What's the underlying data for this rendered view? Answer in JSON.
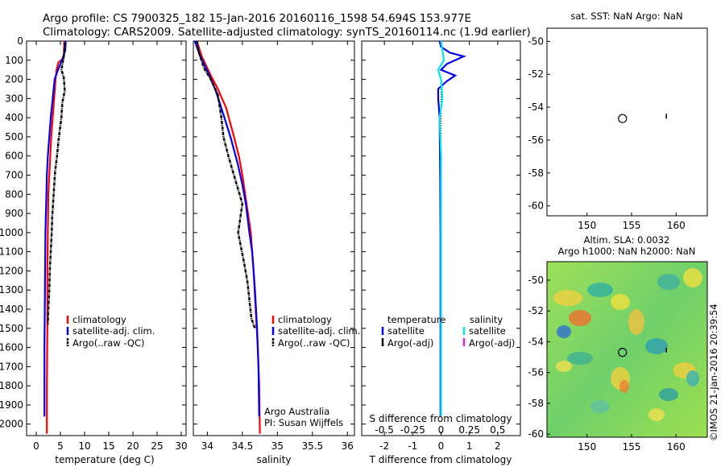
{
  "header": {
    "line1": "Argo profile: CS 7900325_182 15-Jan-2016 20160116_1598 54.694S 153.977E",
    "line2": "Climatology: CARS2009. Satellite-adjusted climatology: synTS_20160114.nc (1.9d earlier)"
  },
  "colors": {
    "climatology": "#ff0000",
    "satellite": "#0000ee",
    "argo": "#000000",
    "sat_salinity": "#00e5ee",
    "argo_salinity": "#e020e0"
  },
  "chart_data": [
    {
      "type": "line",
      "id": "temperature",
      "xlabel": "temperature (deg C)",
      "ylabel": "",
      "xlim": [
        -2,
        31
      ],
      "ylim": [
        0,
        2060
      ],
      "xticks": [
        0,
        5,
        10,
        15,
        20,
        25,
        30
      ],
      "yticks": [
        0,
        100,
        200,
        300,
        400,
        500,
        600,
        700,
        800,
        900,
        1000,
        1100,
        1200,
        1300,
        1400,
        1500,
        1600,
        1700,
        1800,
        1900,
        2000
      ],
      "y_reversed": true,
      "legend": {
        "placement": "lower-middle",
        "entries": [
          "climatology",
          "satellite-adj. clim.",
          "Argo(..raw -QC)"
        ]
      },
      "series": [
        {
          "name": "climatology",
          "color": "#ff0000",
          "x": [
            5.8,
            5.7,
            4.6,
            4.2,
            4.0,
            3.7,
            3.4,
            3.1,
            2.9,
            2.7,
            2.5,
            2.4,
            2.3,
            2.3,
            2.2,
            2.2
          ],
          "y": [
            0,
            90,
            110,
            150,
            200,
            300,
            400,
            500,
            600,
            700,
            800,
            1000,
            1200,
            1500,
            1800,
            2050
          ]
        },
        {
          "name": "satellite-adj. clim.",
          "color": "#0000ee",
          "x": [
            6.1,
            6.0,
            5.3,
            4.5,
            3.8,
            3.4,
            3.0,
            2.7,
            2.4,
            2.2,
            2.1,
            1.9,
            1.8,
            1.7,
            1.7
          ],
          "y": [
            0,
            50,
            100,
            150,
            200,
            300,
            400,
            500,
            600,
            700,
            800,
            1000,
            1300,
            1600,
            1960
          ]
        },
        {
          "name": "Argo(..raw -QC)",
          "color": "#000000",
          "x": [
            5.9,
            5.8,
            5.5,
            5.2,
            5.7,
            5.9,
            5.4,
            5.2,
            4.9,
            4.6,
            4.3,
            3.9,
            3.7,
            3.5,
            3.3,
            3.2,
            3.0,
            2.8,
            2.7,
            2.5,
            2.4
          ],
          "y": [
            10,
            60,
            110,
            150,
            190,
            260,
            320,
            400,
            460,
            520,
            600,
            680,
            760,
            840,
            920,
            1000,
            1100,
            1200,
            1300,
            1400,
            1480
          ]
        }
      ]
    },
    {
      "type": "line",
      "id": "salinity",
      "xlabel": "salinity",
      "ylabel": "",
      "xlim": [
        33.8,
        36.1
      ],
      "ylim": [
        0,
        2060
      ],
      "xticks": [
        34,
        34.5,
        35,
        35.5,
        36
      ],
      "y_reversed": true,
      "legend": {
        "placement": "lower-right",
        "entries": [
          "climatology",
          "satellite-adj. clim.",
          "Argo(..raw -QC)"
        ]
      },
      "annotations": [
        "Argo Australia",
        "PI: Susan Wijffels"
      ],
      "series": [
        {
          "name": "climatology",
          "color": "#ff0000",
          "x": [
            33.85,
            33.92,
            34.05,
            34.15,
            34.27,
            34.38,
            34.45,
            34.5,
            34.54,
            34.58,
            34.62,
            34.66,
            34.69,
            34.72,
            34.74,
            34.75
          ],
          "y": [
            0,
            80,
            180,
            250,
            350,
            500,
            600,
            700,
            800,
            900,
            1000,
            1200,
            1400,
            1600,
            1800,
            2050
          ]
        },
        {
          "name": "satellite-adj. clim.",
          "color": "#0000ee",
          "x": [
            33.82,
            33.9,
            34.03,
            34.12,
            34.2,
            34.33,
            34.44,
            34.5,
            34.55,
            34.6,
            34.64,
            34.68,
            34.71,
            34.73,
            34.74
          ],
          "y": [
            0,
            80,
            180,
            260,
            350,
            500,
            650,
            750,
            850,
            1000,
            1100,
            1300,
            1500,
            1700,
            1960
          ]
        },
        {
          "name": "Argo(..raw -QC)",
          "color": "#000000",
          "x": [
            33.85,
            33.88,
            33.95,
            34.05,
            34.15,
            34.2,
            34.23,
            34.3,
            34.38,
            34.5,
            34.44,
            34.52,
            34.57,
            34.6,
            34.63,
            34.68
          ],
          "y": [
            0,
            60,
            140,
            200,
            280,
            400,
            500,
            600,
            700,
            850,
            1000,
            1150,
            1250,
            1350,
            1450,
            1500
          ]
        }
      ]
    },
    {
      "type": "line",
      "id": "difference",
      "xlabel": "T difference from climatology",
      "top_label": "S difference from climatology",
      "xlim": [
        -2.8,
        2.8
      ],
      "ylim": [
        0,
        2060
      ],
      "xticks": [
        -2,
        -1,
        0,
        1,
        2
      ],
      "xtick_labels": [
        "-2",
        "-1",
        "0",
        "1",
        "2"
      ],
      "s_xticks": [
        "-0.5",
        "-0.25",
        "0",
        "0.25",
        "0.5"
      ],
      "y_reversed": true,
      "legend": {
        "placement": "lower",
        "headers": [
          "temperature",
          "salinity"
        ],
        "entries": [
          "satellite",
          "Argo(-adj)",
          "satellite",
          "Argo(-adj)"
        ]
      },
      "series": [
        {
          "name": "satellite",
          "color": "#0000ee",
          "x": [
            -0.05,
            0.0,
            0.3,
            0.8,
            0.5,
            0.2,
            0.0,
            0.5,
            0.2,
            -0.1,
            -0.1,
            -0.05,
            -0.03,
            -0.02,
            -0.02,
            -0.02
          ],
          "y": [
            0,
            30,
            60,
            80,
            100,
            120,
            150,
            180,
            210,
            250,
            300,
            400,
            700,
            1000,
            1500,
            1960
          ]
        },
        {
          "name": "satellite",
          "color": "#00e5ee",
          "x": [
            0.0,
            0.05,
            0.1,
            -0.1,
            0.0,
            0.05,
            -0.05,
            0.0,
            0.0,
            0.0,
            0.0
          ],
          "y": [
            0,
            50,
            100,
            150,
            200,
            300,
            400,
            600,
            900,
            1400,
            1960
          ]
        }
      ]
    },
    {
      "type": "scatter",
      "id": "sst_map",
      "title": "sat. SST: NaN Argo: NaN",
      "xlim": [
        145.5,
        163.5
      ],
      "ylim": [
        -60.6,
        -49.2
      ],
      "xticks": [
        150,
        155,
        160
      ],
      "yticks": [
        -50,
        -52,
        -54,
        -56,
        -58,
        -60
      ],
      "points": [
        {
          "x": 153.98,
          "y": -54.69,
          "marker": "circle"
        }
      ]
    },
    {
      "type": "heatmap",
      "id": "sla_map",
      "title": "Altim. SLA: 0.0032",
      "subtitle": "Argo h1000: NaN h2000: NaN",
      "xlim": [
        145.5,
        163.5
      ],
      "ylim": [
        -60.2,
        -48.8
      ],
      "xticks": [
        150,
        155,
        160
      ],
      "yticks": [
        -50,
        -52,
        -54,
        -56,
        -58,
        -60
      ],
      "points": [
        {
          "x": 153.98,
          "y": -54.69,
          "marker": "circle"
        }
      ]
    }
  ],
  "footer": {
    "credit": "©IMOS 21-Jan-2016 20:39:54"
  }
}
